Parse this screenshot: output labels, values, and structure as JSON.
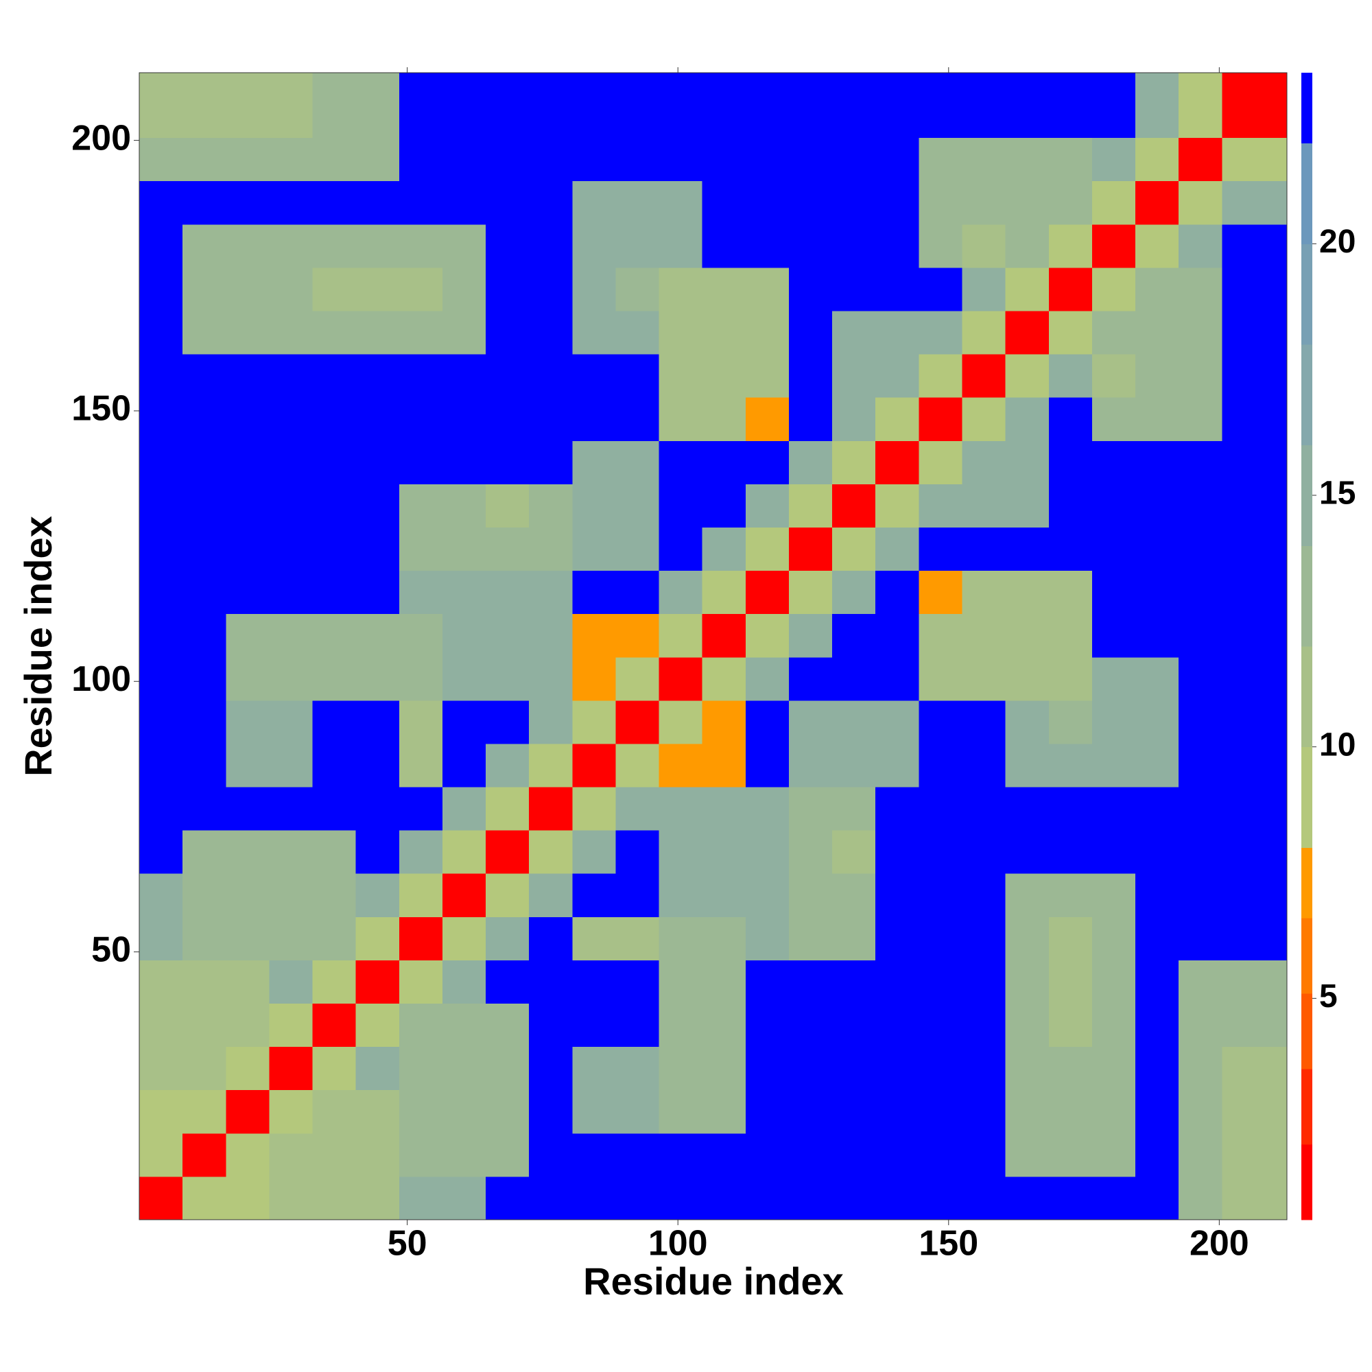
{
  "chart_data": {
    "type": "heatmap",
    "xlabel": "Residue index",
    "ylabel": "Residue index",
    "xlim": [
      0.5,
      212.5
    ],
    "ylim": [
      0.5,
      212.5
    ],
    "xticks": [
      50,
      100,
      150,
      200
    ],
    "yticks": [
      50,
      100,
      150,
      200
    ],
    "x_bins": [
      0.5,
      8.5,
      16.5,
      24.5,
      32.5,
      40.5,
      48.5,
      56.5,
      64.5,
      72.5,
      80.5,
      88.5,
      96.5,
      104.5,
      112.5,
      120.5,
      128.5,
      136.5,
      144.5,
      152.5,
      160.5,
      168.5,
      176.5,
      184.5,
      192.5,
      200.5,
      212.5
    ],
    "y_bins": [
      0.5,
      8.5,
      16.5,
      24.5,
      32.5,
      40.5,
      48.5,
      56.5,
      64.5,
      72.5,
      80.5,
      88.5,
      96.5,
      104.5,
      112.5,
      120.5,
      128.5,
      136.5,
      144.5,
      152.5,
      160.5,
      168.5,
      176.5,
      184.5,
      192.5,
      200.5,
      212.5
    ],
    "z": [
      [
        2,
        9,
        10,
        12,
        12,
        12,
        16,
        16,
        25,
        25,
        25,
        25,
        25,
        25,
        25,
        25,
        25,
        25,
        25,
        25,
        25,
        25,
        25,
        25,
        13,
        12
      ],
      [
        9,
        2,
        9,
        12,
        12,
        12,
        14,
        14,
        14,
        25,
        25,
        25,
        25,
        25,
        25,
        25,
        25,
        25,
        25,
        25,
        14,
        14,
        14,
        25,
        13,
        12
      ],
      [
        10,
        9,
        2,
        9,
        12,
        12,
        14,
        14,
        14,
        25,
        15,
        15,
        14,
        14,
        25,
        25,
        25,
        25,
        25,
        25,
        14,
        14,
        14,
        25,
        13,
        12
      ],
      [
        12,
        12,
        9,
        2,
        9,
        15,
        14,
        14,
        14,
        25,
        15,
        15,
        14,
        14,
        25,
        25,
        25,
        25,
        25,
        25,
        14,
        14,
        14,
        25,
        13,
        12
      ],
      [
        12,
        12,
        12,
        9,
        2,
        9,
        14,
        14,
        14,
        25,
        25,
        25,
        14,
        14,
        25,
        25,
        25,
        25,
        25,
        25,
        14,
        12,
        14,
        25,
        13,
        13
      ],
      [
        12,
        12,
        12,
        15,
        9,
        2,
        9,
        15,
        25,
        25,
        25,
        25,
        14,
        14,
        25,
        25,
        25,
        25,
        25,
        25,
        14,
        12,
        14,
        25,
        13,
        13
      ],
      [
        16,
        14,
        14,
        14,
        14,
        9,
        2,
        9,
        15,
        25,
        11,
        11,
        14,
        14,
        15,
        13,
        13,
        25,
        25,
        25,
        14,
        12,
        14,
        25,
        25,
        25
      ],
      [
        16,
        14,
        14,
        14,
        14,
        15,
        9,
        2,
        9,
        15,
        25,
        25,
        15,
        15,
        15,
        13,
        13,
        25,
        25,
        25,
        14,
        14,
        14,
        25,
        25,
        25
      ],
      [
        25,
        14,
        14,
        14,
        14,
        25,
        15,
        9,
        2,
        9,
        15,
        25,
        15,
        15,
        15,
        13,
        11,
        25,
        25,
        25,
        25,
        25,
        25,
        25,
        25,
        25
      ],
      [
        25,
        25,
        25,
        25,
        25,
        25,
        25,
        15,
        9,
        2,
        9,
        15,
        15,
        15,
        15,
        13,
        13,
        25,
        25,
        25,
        25,
        25,
        25,
        25,
        25,
        25
      ],
      [
        25,
        25,
        15,
        15,
        25,
        25,
        11,
        25,
        15,
        9,
        2,
        9,
        7,
        7,
        25,
        15,
        15,
        15,
        25,
        25,
        15,
        15,
        15,
        15,
        25,
        25
      ],
      [
        25,
        25,
        15,
        15,
        25,
        25,
        11,
        25,
        25,
        15,
        9,
        2,
        9,
        7,
        25,
        15,
        15,
        15,
        25,
        25,
        15,
        13,
        15,
        15,
        25,
        25
      ],
      [
        25,
        25,
        14,
        14,
        14,
        14,
        14,
        15,
        15,
        15,
        7,
        9,
        2,
        9,
        15,
        25,
        25,
        25,
        12,
        12,
        12,
        12,
        15,
        15,
        25,
        25
      ],
      [
        25,
        25,
        14,
        14,
        14,
        14,
        14,
        15,
        15,
        15,
        7,
        7,
        9,
        2,
        9,
        15,
        25,
        25,
        12,
        12,
        12,
        12,
        25,
        25,
        25,
        25
      ],
      [
        25,
        25,
        25,
        25,
        25,
        25,
        15,
        15,
        15,
        15,
        25,
        25,
        15,
        9,
        2,
        9,
        15,
        25,
        7,
        12,
        12,
        12,
        25,
        25,
        25,
        25
      ],
      [
        25,
        25,
        25,
        25,
        25,
        25,
        13,
        13,
        13,
        13,
        15,
        15,
        25,
        15,
        9,
        2,
        9,
        15,
        25,
        25,
        25,
        25,
        25,
        25,
        25,
        25
      ],
      [
        25,
        25,
        25,
        25,
        25,
        25,
        13,
        13,
        11,
        13,
        15,
        15,
        25,
        25,
        15,
        9,
        2,
        9,
        15,
        15,
        15,
        25,
        25,
        25,
        25,
        25
      ],
      [
        25,
        25,
        25,
        25,
        25,
        25,
        25,
        25,
        25,
        25,
        15,
        15,
        25,
        25,
        25,
        15,
        9,
        2,
        9,
        15,
        15,
        25,
        25,
        25,
        25,
        25
      ],
      [
        25,
        25,
        25,
        25,
        25,
        25,
        25,
        25,
        25,
        25,
        25,
        25,
        12,
        12,
        7,
        25,
        15,
        9,
        2,
        9,
        15,
        25,
        14,
        14,
        14,
        25
      ],
      [
        25,
        25,
        25,
        25,
        25,
        25,
        25,
        25,
        25,
        25,
        25,
        25,
        12,
        12,
        12,
        25,
        15,
        15,
        9,
        2,
        9,
        15,
        11,
        14,
        14,
        25
      ],
      [
        25,
        14,
        14,
        14,
        14,
        14,
        14,
        14,
        25,
        25,
        15,
        15,
        12,
        12,
        12,
        25,
        15,
        15,
        15,
        9,
        2,
        9,
        14,
        14,
        14,
        25
      ],
      [
        25,
        14,
        14,
        14,
        12,
        12,
        12,
        14,
        25,
        25,
        15,
        13,
        12,
        12,
        12,
        25,
        25,
        25,
        25,
        15,
        9,
        2,
        9,
        14,
        14,
        25
      ],
      [
        25,
        14,
        14,
        14,
        14,
        14,
        14,
        14,
        25,
        25,
        15,
        15,
        15,
        25,
        25,
        25,
        25,
        25,
        14,
        11,
        14,
        9,
        2,
        9,
        15,
        25
      ],
      [
        25,
        25,
        25,
        25,
        25,
        25,
        25,
        25,
        25,
        25,
        15,
        15,
        15,
        25,
        25,
        25,
        25,
        25,
        14,
        14,
        14,
        14,
        9,
        2,
        9,
        15
      ],
      [
        13,
        13,
        13,
        13,
        13,
        13,
        25,
        25,
        25,
        25,
        25,
        25,
        25,
        25,
        25,
        25,
        25,
        25,
        14,
        14,
        14,
        14,
        15,
        9,
        2,
        9
      ],
      [
        12,
        12,
        12,
        12,
        13,
        13,
        25,
        25,
        25,
        25,
        25,
        25,
        25,
        25,
        25,
        25,
        25,
        25,
        25,
        25,
        25,
        25,
        25,
        15,
        9,
        2
      ]
    ],
    "colorbar": {
      "lim": [
        0.6,
        23.4
      ],
      "ticks": [
        5,
        10,
        15,
        20
      ],
      "levels": [
        {
          "from": 0.6,
          "to": 2.1,
          "color": "#ff0000"
        },
        {
          "from": 2.1,
          "to": 3.6,
          "color": "#ff2a00"
        },
        {
          "from": 3.6,
          "to": 5.1,
          "color": "#ff5a00"
        },
        {
          "from": 5.1,
          "to": 6.6,
          "color": "#ff7a00"
        },
        {
          "from": 6.6,
          "to": 8.0,
          "color": "#ff9a00"
        },
        {
          "from": 8.0,
          "to": 10,
          "color": "#b4c87c"
        },
        {
          "from": 10,
          "to": 12,
          "color": "#a8c088"
        },
        {
          "from": 12,
          "to": 14,
          "color": "#9cb894"
        },
        {
          "from": 14,
          "to": 16,
          "color": "#90b0a0"
        },
        {
          "from": 16,
          "to": 18,
          "color": "#84a8ac"
        },
        {
          "from": 18,
          "to": 20,
          "color": "#78a0b4"
        },
        {
          "from": 20,
          "to": 22,
          "color": "#6c98bc"
        },
        {
          "from": 22,
          "to": 23.4,
          "color": "#0000ff"
        }
      ]
    }
  }
}
